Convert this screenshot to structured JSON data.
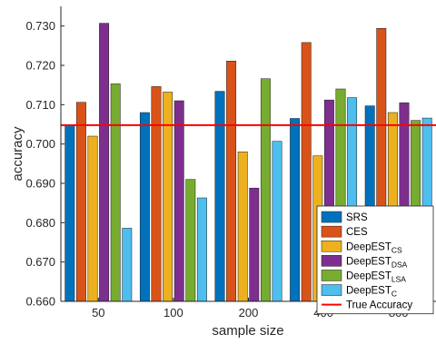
{
  "chart_data": {
    "type": "bar",
    "xlabel": "sample size",
    "ylabel": "accuracy",
    "categories": [
      "50",
      "100",
      "200",
      "400",
      "800"
    ],
    "ylim": [
      0.66,
      0.735
    ],
    "yticks": [
      "0.660",
      "0.670",
      "0.680",
      "0.690",
      "0.700",
      "0.710",
      "0.720",
      "0.730"
    ],
    "grid": false,
    "legend_position": "bottom-right",
    "series": [
      {
        "name": "SRS",
        "name_main": "SRS",
        "name_sub": "",
        "color": "#0072BD",
        "values": [
          0.7049,
          0.708,
          0.7134,
          0.7065,
          0.7097
        ]
      },
      {
        "name": "CES",
        "name_main": "CES",
        "name_sub": "",
        "color": "#D95319",
        "values": [
          0.7106,
          0.7146,
          0.7211,
          0.7258,
          0.7294
        ]
      },
      {
        "name": "DeepEST_CS",
        "name_main": "DeepEST",
        "name_sub": "CS",
        "color": "#EDB120",
        "values": [
          0.702,
          0.7132,
          0.698,
          0.697,
          0.708
        ]
      },
      {
        "name": "DeepEST_DSA",
        "name_main": "DeepEST",
        "name_sub": "DSA",
        "color": "#7E2F8E",
        "values": [
          0.7307,
          0.711,
          0.6888,
          0.7112,
          0.7105
        ]
      },
      {
        "name": "DeepEST_LSA",
        "name_main": "DeepEST",
        "name_sub": "LSA",
        "color": "#77AC30",
        "values": [
          0.7153,
          0.691,
          0.7166,
          0.714,
          0.706
        ]
      },
      {
        "name": "DeepEST_C",
        "name_main": "DeepEST",
        "name_sub": "C",
        "color": "#4DBEEE",
        "values": [
          0.6786,
          0.6863,
          0.7007,
          0.7118,
          0.7066
        ]
      }
    ],
    "reference_line": {
      "name": "True Accuracy",
      "value": 0.7048,
      "color": "#FF0000"
    }
  }
}
